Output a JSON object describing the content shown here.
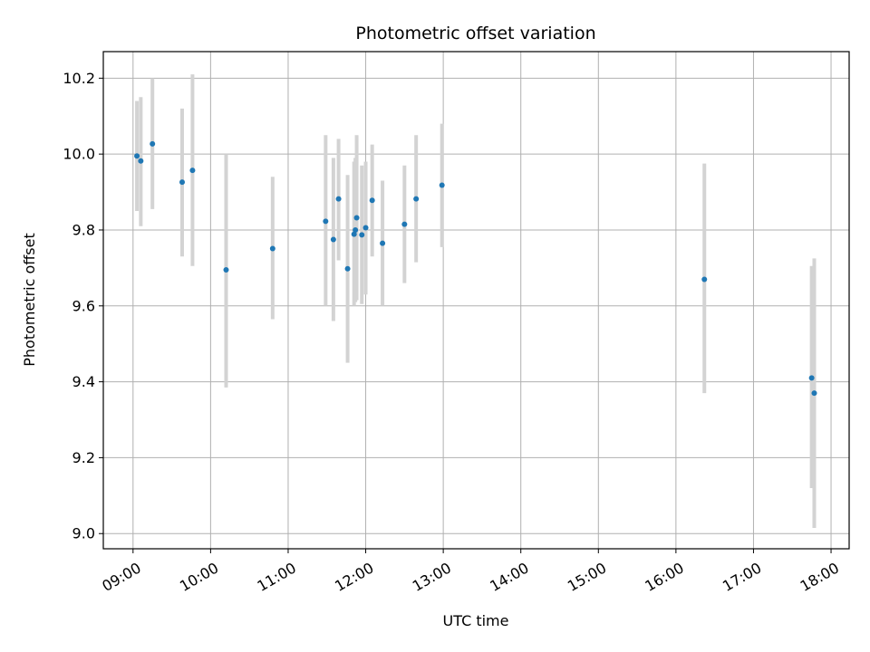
{
  "chart_data": {
    "type": "scatter",
    "title": "Photometric offset variation",
    "xlabel": "UTC time",
    "ylabel": "Photometric offset",
    "grid": true,
    "xlim": [
      "08:37",
      "18:14"
    ],
    "ylim": [
      8.96,
      10.27
    ],
    "xticks": [
      "09:00",
      "10:00",
      "11:00",
      "12:00",
      "13:00",
      "14:00",
      "15:00",
      "16:00",
      "17:00",
      "18:00"
    ],
    "yticks": [
      "9.0",
      "9.2",
      "9.4",
      "9.6",
      "9.8",
      "10.0",
      "10.2"
    ],
    "colors": {
      "point": "#1f77b4",
      "errorbar": "#d3d3d3",
      "grid": "#b0b0b0"
    },
    "points": [
      {
        "x": "09:03",
        "y": 9.995,
        "low": 9.85,
        "high": 10.14
      },
      {
        "x": "09:06",
        "y": 9.982,
        "low": 9.81,
        "high": 10.15
      },
      {
        "x": "09:15",
        "y": 10.027,
        "low": 9.855,
        "high": 10.2
      },
      {
        "x": "09:38",
        "y": 9.926,
        "low": 9.73,
        "high": 10.12
      },
      {
        "x": "09:46",
        "y": 9.957,
        "low": 9.705,
        "high": 10.21
      },
      {
        "x": "10:12",
        "y": 9.695,
        "low": 9.385,
        "high": 10.0
      },
      {
        "x": "10:48",
        "y": 9.751,
        "low": 9.565,
        "high": 9.94
      },
      {
        "x": "11:29",
        "y": 9.823,
        "low": 9.6,
        "high": 10.05
      },
      {
        "x": "11:35",
        "y": 9.775,
        "low": 9.56,
        "high": 9.99
      },
      {
        "x": "11:39",
        "y": 9.882,
        "low": 9.72,
        "high": 10.04
      },
      {
        "x": "11:46",
        "y": 9.698,
        "low": 9.45,
        "high": 9.945
      },
      {
        "x": "11:51",
        "y": 9.789,
        "low": 9.6,
        "high": 9.98
      },
      {
        "x": "11:52",
        "y": 9.8,
        "low": 9.61,
        "high": 9.99
      },
      {
        "x": "11:53",
        "y": 9.832,
        "low": 9.615,
        "high": 10.05
      },
      {
        "x": "11:57",
        "y": 9.787,
        "low": 9.605,
        "high": 9.97
      },
      {
        "x": "12:00",
        "y": 9.806,
        "low": 9.63,
        "high": 9.98
      },
      {
        "x": "12:05",
        "y": 9.878,
        "low": 9.73,
        "high": 10.025
      },
      {
        "x": "12:13",
        "y": 9.765,
        "low": 9.6,
        "high": 9.93
      },
      {
        "x": "12:30",
        "y": 9.815,
        "low": 9.66,
        "high": 9.97
      },
      {
        "x": "12:39",
        "y": 9.882,
        "low": 9.715,
        "high": 10.05
      },
      {
        "x": "12:59",
        "y": 9.918,
        "low": 9.755,
        "high": 10.08
      },
      {
        "x": "16:22",
        "y": 9.67,
        "low": 9.37,
        "high": 9.975
      },
      {
        "x": "17:45",
        "y": 9.41,
        "low": 9.12,
        "high": 9.705
      },
      {
        "x": "17:47",
        "y": 9.37,
        "low": 9.015,
        "high": 9.725
      }
    ]
  }
}
